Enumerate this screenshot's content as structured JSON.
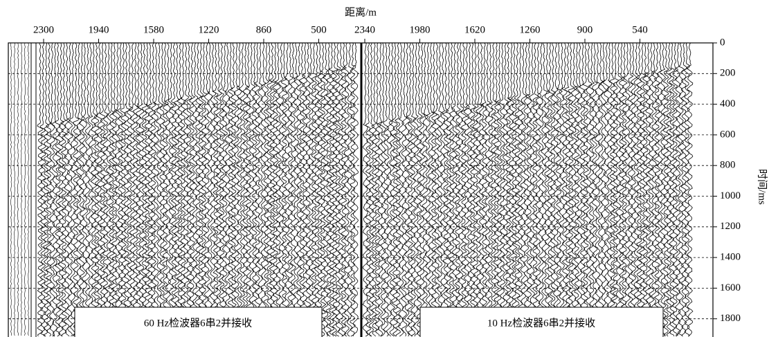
{
  "x_axis": {
    "label": "距离/m",
    "left_ticks": [
      2300,
      1940,
      1580,
      1220,
      860,
      500
    ],
    "right_ticks": [
      2340,
      1980,
      1620,
      1260,
      900,
      540
    ]
  },
  "y_axis": {
    "label": "时间/ms",
    "ticks": [
      0,
      200,
      400,
      600,
      800,
      1000,
      1200,
      1400,
      1600,
      1800
    ]
  },
  "panels": [
    {
      "label": "60 Hz检波器6串2并接收"
    },
    {
      "label": "10 Hz检波器6串2并接收"
    }
  ]
}
